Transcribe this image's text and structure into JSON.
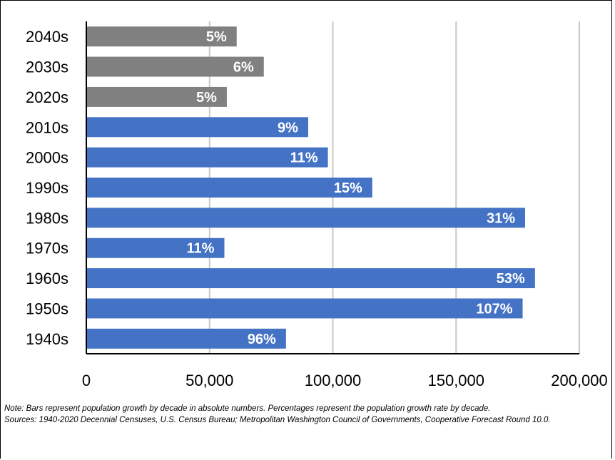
{
  "chart_data": {
    "type": "bar",
    "orientation": "horizontal",
    "categories": [
      "1940s",
      "1950s",
      "1960s",
      "1970s",
      "1980s",
      "1990s",
      "2000s",
      "2010s",
      "2020s",
      "2030s",
      "2040s"
    ],
    "values": [
      81000,
      177000,
      182000,
      56000,
      178000,
      116000,
      98000,
      90000,
      57000,
      72000,
      61000
    ],
    "data_labels": [
      "96%",
      "107%",
      "53%",
      "11%",
      "31%",
      "15%",
      "11%",
      "9%",
      "5%",
      "6%",
      "5%"
    ],
    "bar_colors": [
      "#4472C4",
      "#4472C4",
      "#4472C4",
      "#4472C4",
      "#4472C4",
      "#4472C4",
      "#4472C4",
      "#4472C4",
      "#808080",
      "#808080",
      "#808080"
    ],
    "xlim": [
      0,
      200000
    ],
    "xticks": [
      0,
      50000,
      100000,
      150000,
      200000
    ],
    "xtick_labels": [
      "0",
      "50,000",
      "100,000",
      "150,000",
      "200,000"
    ],
    "grid": "vertical",
    "title": "",
    "xlabel": "",
    "ylabel": ""
  },
  "notes": {
    "note": "Note:  Bars represent population growth by decade in absolute numbers. Percentages represent the population growth rate by decade.",
    "sources": "Sources: 1940-2020 Decennial Censuses, U.S. Census Bureau; Metropolitan Washington Council of Governments, Cooperative Forecast Round 10.0."
  }
}
